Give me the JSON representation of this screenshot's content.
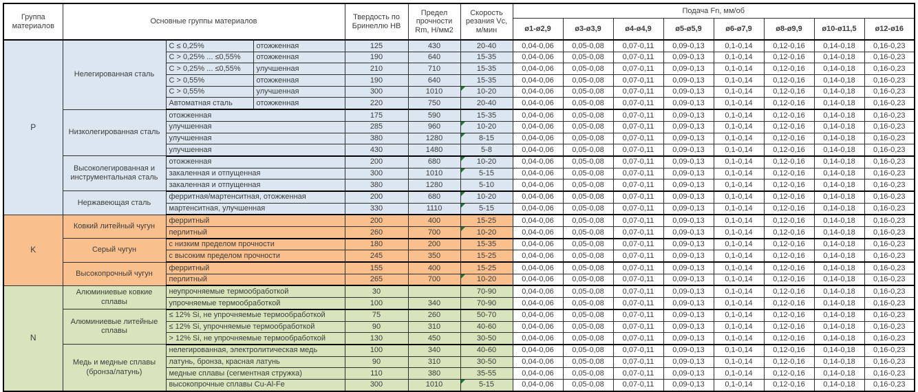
{
  "colors": {
    "group_P": "#dce6f1",
    "group_K": "#f9c08d",
    "group_N": "#d7e4bc",
    "flag_triangle": "#1e7a2e",
    "border": "#000000",
    "text": "#3c3c3c"
  },
  "table": {
    "headers": {
      "col_group": "Группа материалов",
      "col_main": "Основные группы материалов",
      "col_hardness": "Твердость по Бринеллю HB",
      "col_strength": "Предел прочности Rm, Н/мм2",
      "col_speed": "Скорость резания Vc, м/мин",
      "feed_title": "Подача Fn, мм/об",
      "feed_cols": [
        "ø1-ø2,9",
        "ø3-ø3,9",
        "ø4-ø4,9",
        "ø5-ø5,9",
        "ø6-ø7,9",
        "ø8-ø9,9",
        "ø10-ø11,5",
        "ø12-ø16"
      ]
    },
    "feed_values": [
      "0,04-0,06",
      "0,05-0,08",
      "0,07-0,11",
      "0,09-0,13",
      "0,1-0,14",
      "0,12-0,16",
      "0,14-0,18",
      "0,16-0,23"
    ],
    "groups": [
      {
        "code": "P",
        "color": "#dce6f1",
        "subgroups": [
          {
            "name": "Нелегированная сталь",
            "rows": [
              {
                "c1": "C ≤ 0,25%",
                "c2": "отожженная",
                "hb": "125",
                "rm": "430",
                "vc": "20-40",
                "flag": false
              },
              {
                "c1": "C > 0,25% ... ≤0,55%",
                "c2": "отожженная",
                "hb": "190",
                "rm": "640",
                "vc": "15-35",
                "flag": false
              },
              {
                "c1": "C > 0,25% ... ≤0,55%",
                "c2": "улучшенная",
                "hb": "210",
                "rm": "710",
                "vc": "15-35",
                "flag": false
              },
              {
                "c1": "C > 0,55%",
                "c2": "отожженная",
                "hb": "190",
                "rm": "640",
                "vc": "15-35",
                "flag": false
              },
              {
                "c1": "C > 0,55%",
                "c2": "улучшенная",
                "hb": "300",
                "rm": "1010",
                "vc": "10-20",
                "flag": true
              },
              {
                "c1": "Автоматная сталь",
                "c2": "отожженная",
                "hb": "220",
                "rm": "750",
                "vc": "20-40",
                "flag": false
              }
            ]
          },
          {
            "name": "Низколегированная сталь",
            "rows": [
              {
                "desc": "отожженная",
                "hb": "175",
                "rm": "590",
                "vc": "15-35",
                "flag": false
              },
              {
                "desc": "улучшенная",
                "hb": "285",
                "rm": "960",
                "vc": "10-20",
                "flag": true
              },
              {
                "desc": "улучшенная",
                "hb": "380",
                "rm": "1280",
                "vc": "8-15",
                "flag": true
              },
              {
                "desc": "улучшенная",
                "hb": "430",
                "rm": "1480",
                "vc": "5-8",
                "flag": false
              }
            ]
          },
          {
            "name": "Высоколегированная и инструментальная сталь",
            "rows": [
              {
                "desc": "отожженная",
                "hb": "200",
                "rm": "680",
                "vc": "10-20",
                "flag": true
              },
              {
                "desc": "закаленная и отпущенная",
                "hb": "300",
                "rm": "1010",
                "vc": "5-15",
                "flag": true
              },
              {
                "desc": "закаленная и отпущенная",
                "hb": "380",
                "rm": "1280",
                "vc": "5-10",
                "flag": false
              }
            ]
          },
          {
            "name": "Нержавеющая сталь",
            "rows": [
              {
                "desc": "ферритная/мартенситная, отожженная",
                "hb": "200",
                "rm": "680",
                "vc": "10-20",
                "flag": true
              },
              {
                "desc": "мартенситная, улучшенная",
                "hb": "330",
                "rm": "1110",
                "vc": "5-15",
                "flag": true
              }
            ]
          }
        ]
      },
      {
        "code": "K",
        "color": "#f9c08d",
        "subgroups": [
          {
            "name": "Ковкий литейный чугун",
            "rows": [
              {
                "desc": "ферритный",
                "hb": "200",
                "rm": "400",
                "vc": "15-25",
                "flag": false
              },
              {
                "desc": "перлитный",
                "hb": "260",
                "rm": "700",
                "vc": "10-20",
                "flag": true
              }
            ]
          },
          {
            "name": "Серый чугун",
            "rows": [
              {
                "desc": "с низким пределом прочности",
                "hb": "180",
                "rm": "200",
                "vc": "15-35",
                "flag": false
              },
              {
                "desc": "с высоким пределом прочности",
                "hb": "245",
                "rm": "350",
                "vc": "15-25",
                "flag": false
              }
            ]
          },
          {
            "name": "Высокопрочный чугун",
            "rows": [
              {
                "desc": "ферритный",
                "hb": "155",
                "rm": "400",
                "vc": "15-25",
                "flag": false
              },
              {
                "desc": "перлитный",
                "hb": "265",
                "rm": "700",
                "vc": "10-20",
                "flag": true
              }
            ]
          }
        ]
      },
      {
        "code": "N",
        "color": "#d7e4bc",
        "subgroups": [
          {
            "name": "Алюминиевые ковкие сплавы",
            "rows": [
              {
                "desc": "неупрочняемые термообработкой",
                "hb": "30",
                "rm": "",
                "vc": "70-90",
                "flag": false
              },
              {
                "desc": "упрочняемые термообработкой",
                "hb": "100",
                "rm": "340",
                "vc": "70-90",
                "flag": false
              }
            ]
          },
          {
            "name": "Алюминиевые литейные сплавы",
            "rows": [
              {
                "desc": "≤ 12% Si, не упрочняемые термообработкой",
                "hb": "75",
                "rm": "260",
                "vc": "50-70",
                "flag": false
              },
              {
                "desc": "≤ 12% Si, упрочняемые термообработкой",
                "hb": "90",
                "rm": "310",
                "vc": "40-60",
                "flag": false
              },
              {
                "desc": "> 12% Si, не упрочняемые термообработкой",
                "hb": "130",
                "rm": "450",
                "vc": "30-50",
                "flag": false
              }
            ]
          },
          {
            "name": "Медь и медные сплавы (бронза/латунь)",
            "rows": [
              {
                "desc": "нелегированная, электролитическая медь",
                "hb": "100",
                "rm": "340",
                "vc": "40-60",
                "flag": false
              },
              {
                "desc": "латунь, бронза, красная латунь",
                "hb": "90",
                "rm": "310",
                "vc": "30-50",
                "flag": false
              },
              {
                "desc": "медные сплавы (сегментная стружка)",
                "hb": "110",
                "rm": "380",
                "vc": "35-55",
                "flag": false
              },
              {
                "desc": "высокопрочные сплавы Cu-Al-Fe",
                "hb": "300",
                "rm": "1010",
                "vc": "5-15",
                "flag": true
              }
            ]
          }
        ]
      }
    ]
  }
}
